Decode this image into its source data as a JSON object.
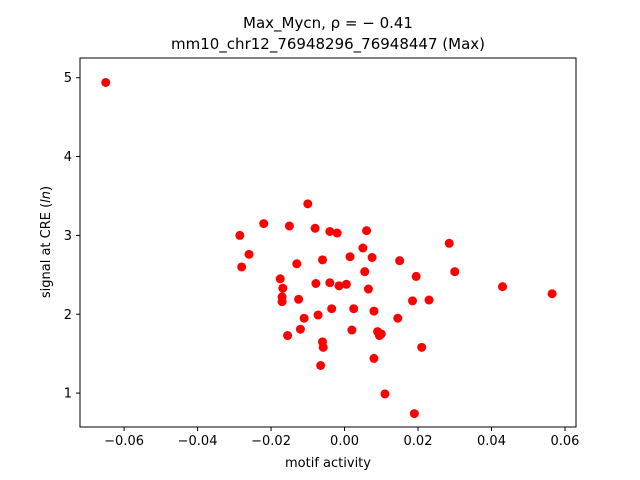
{
  "chart_data": {
    "type": "scatter",
    "title_line1": "Max_Mycn, ρ = − 0.41",
    "title_line2": "mm10_chr12_76948296_76948447 (Max)",
    "xlabel": "motif activity",
    "ylabel": "signal at CRE (ln)",
    "xlim": [
      -0.072,
      0.063
    ],
    "ylim": [
      0.57,
      5.25
    ],
    "xticks": [
      -0.06,
      -0.04,
      -0.02,
      0.0,
      0.02,
      0.04,
      0.06
    ],
    "xtick_labels": [
      "−0.06",
      "−0.04",
      "−0.02",
      "0.00",
      "0.02",
      "0.04",
      "0.06"
    ],
    "yticks": [
      1,
      2,
      3,
      4,
      5
    ],
    "ytick_labels": [
      "1",
      "2",
      "3",
      "4",
      "5"
    ],
    "marker_color": "#ff0000",
    "grid": false,
    "points": [
      {
        "x": -0.065,
        "y": 4.94
      },
      {
        "x": -0.0285,
        "y": 3.0
      },
      {
        "x": -0.028,
        "y": 2.6
      },
      {
        "x": -0.026,
        "y": 2.76
      },
      {
        "x": -0.022,
        "y": 3.15
      },
      {
        "x": -0.0175,
        "y": 2.45
      },
      {
        "x": -0.017,
        "y": 2.22
      },
      {
        "x": -0.017,
        "y": 2.16
      },
      {
        "x": -0.0168,
        "y": 2.33
      },
      {
        "x": -0.0155,
        "y": 1.73
      },
      {
        "x": -0.015,
        "y": 3.12
      },
      {
        "x": -0.013,
        "y": 2.64
      },
      {
        "x": -0.0125,
        "y": 2.19
      },
      {
        "x": -0.012,
        "y": 1.81
      },
      {
        "x": -0.011,
        "y": 1.95
      },
      {
        "x": -0.01,
        "y": 3.4
      },
      {
        "x": -0.008,
        "y": 3.09
      },
      {
        "x": -0.0078,
        "y": 2.39
      },
      {
        "x": -0.0072,
        "y": 1.99
      },
      {
        "x": -0.0065,
        "y": 1.35
      },
      {
        "x": -0.006,
        "y": 1.65
      },
      {
        "x": -0.0058,
        "y": 1.58
      },
      {
        "x": -0.006,
        "y": 2.69
      },
      {
        "x": -0.004,
        "y": 3.05
      },
      {
        "x": -0.004,
        "y": 2.4
      },
      {
        "x": -0.0035,
        "y": 2.07
      },
      {
        "x": -0.002,
        "y": 3.03
      },
      {
        "x": -0.0015,
        "y": 2.36
      },
      {
        "x": 0.0005,
        "y": 2.38
      },
      {
        "x": 0.0015,
        "y": 2.73
      },
      {
        "x": 0.002,
        "y": 1.8
      },
      {
        "x": 0.0025,
        "y": 2.07
      },
      {
        "x": 0.005,
        "y": 2.84
      },
      {
        "x": 0.0055,
        "y": 2.54
      },
      {
        "x": 0.006,
        "y": 3.06
      },
      {
        "x": 0.0065,
        "y": 2.32
      },
      {
        "x": 0.0075,
        "y": 2.72
      },
      {
        "x": 0.008,
        "y": 2.04
      },
      {
        "x": 0.008,
        "y": 1.44
      },
      {
        "x": 0.009,
        "y": 1.78
      },
      {
        "x": 0.0095,
        "y": 1.73
      },
      {
        "x": 0.01,
        "y": 1.75
      },
      {
        "x": 0.011,
        "y": 0.99
      },
      {
        "x": 0.0145,
        "y": 1.95
      },
      {
        "x": 0.015,
        "y": 2.68
      },
      {
        "x": 0.0185,
        "y": 2.17
      },
      {
        "x": 0.019,
        "y": 0.74
      },
      {
        "x": 0.0195,
        "y": 2.48
      },
      {
        "x": 0.021,
        "y": 1.58
      },
      {
        "x": 0.023,
        "y": 2.18
      },
      {
        "x": 0.0285,
        "y": 2.9
      },
      {
        "x": 0.03,
        "y": 2.54
      },
      {
        "x": 0.043,
        "y": 2.35
      },
      {
        "x": 0.0565,
        "y": 2.26
      }
    ]
  }
}
